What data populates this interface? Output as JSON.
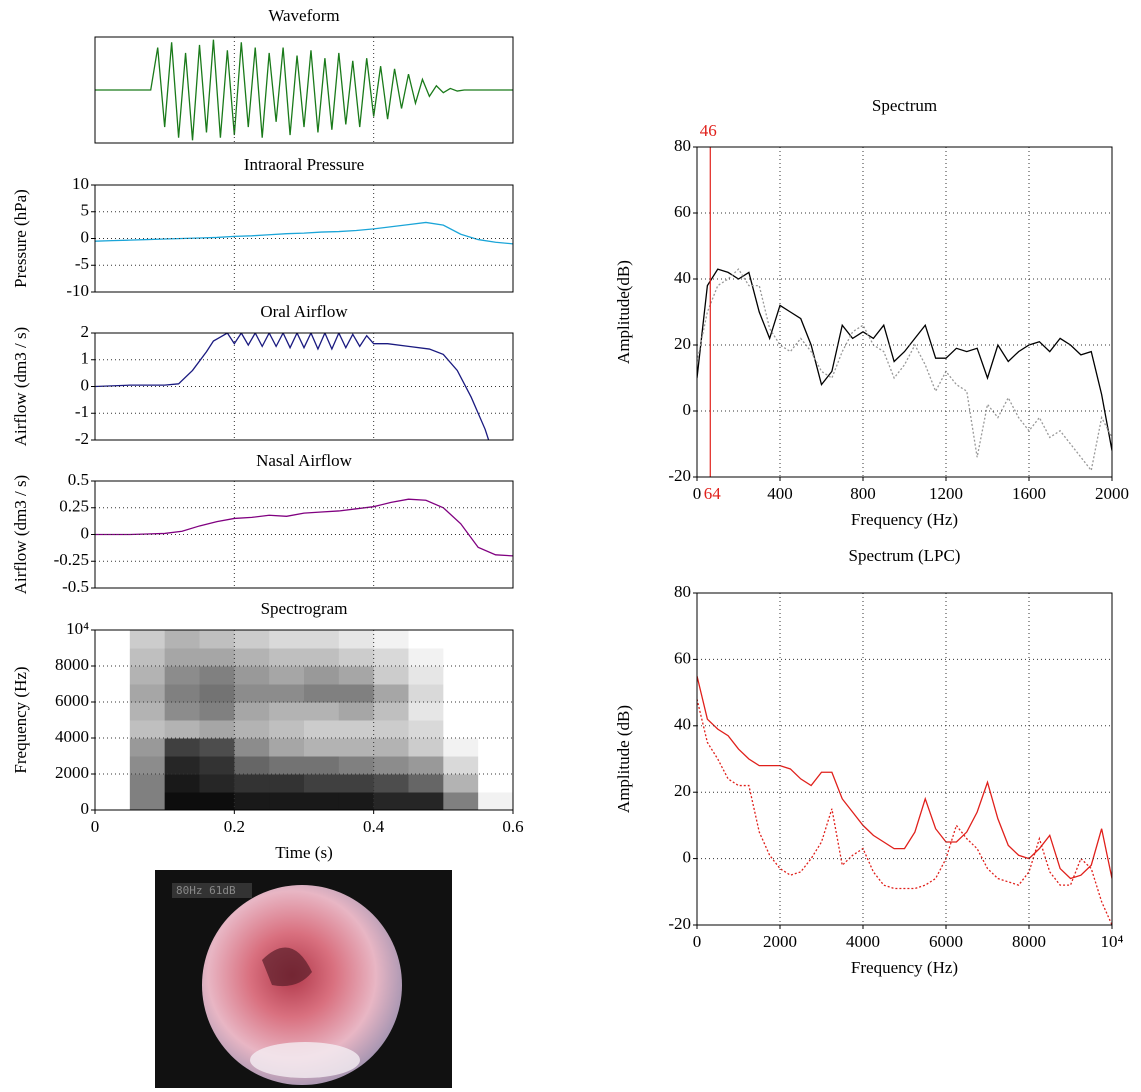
{
  "chart_data": [
    {
      "type": "line",
      "title": "Waveform",
      "xlim": [
        0,
        0.6
      ],
      "ylim": [
        -1,
        1
      ],
      "xticks": [
        0,
        0.2,
        0.4,
        0.6
      ],
      "xtick_labels": false,
      "grid": true,
      "x": [
        0,
        0.08,
        0.09,
        0.1,
        0.11,
        0.12,
        0.13,
        0.14,
        0.15,
        0.16,
        0.17,
        0.18,
        0.19,
        0.2,
        0.21,
        0.22,
        0.23,
        0.24,
        0.25,
        0.26,
        0.27,
        0.28,
        0.29,
        0.3,
        0.31,
        0.32,
        0.33,
        0.34,
        0.35,
        0.36,
        0.37,
        0.38,
        0.39,
        0.4,
        0.41,
        0.42,
        0.43,
        0.44,
        0.45,
        0.46,
        0.47,
        0.48,
        0.49,
        0.5,
        0.51,
        0.52,
        0.53,
        0.6
      ],
      "series": [
        {
          "color": "#1a7a1a",
          "values": [
            0,
            0,
            0.8,
            -0.7,
            0.9,
            -0.9,
            0.7,
            -0.95,
            0.85,
            -0.8,
            0.95,
            -0.9,
            0.75,
            -0.85,
            0.9,
            -0.7,
            0.8,
            -0.9,
            0.7,
            -0.6,
            0.8,
            -0.85,
            0.65,
            -0.7,
            0.75,
            -0.8,
            0.6,
            -0.75,
            0.7,
            -0.65,
            0.55,
            -0.7,
            0.6,
            -0.5,
            0.45,
            -0.55,
            0.4,
            -0.35,
            0.3,
            -0.25,
            0.2,
            -0.12,
            0.08,
            -0.05,
            0.03,
            -0.02,
            0,
            0
          ]
        }
      ]
    },
    {
      "type": "line",
      "title": "Intraoral Pressure",
      "ylabel": "Pressure (hPa)",
      "xlim": [
        0,
        0.6
      ],
      "ylim": [
        -10,
        10
      ],
      "xticks": [
        0,
        0.2,
        0.4,
        0.6
      ],
      "xtick_labels": false,
      "yticks": [
        -10,
        -5,
        0,
        5,
        10
      ],
      "grid": true,
      "x": [
        0,
        0.025,
        0.05,
        0.075,
        0.1,
        0.125,
        0.15,
        0.175,
        0.2,
        0.225,
        0.25,
        0.275,
        0.3,
        0.325,
        0.35,
        0.375,
        0.4,
        0.425,
        0.45,
        0.475,
        0.5,
        0.525,
        0.55,
        0.575,
        0.6
      ],
      "series": [
        {
          "color": "#1ba5d8",
          "values": [
            -0.5,
            -0.4,
            -0.3,
            -0.2,
            -0.1,
            0,
            0.1,
            0.2,
            0.4,
            0.5,
            0.7,
            0.9,
            1.0,
            1.2,
            1.3,
            1.5,
            1.8,
            2.2,
            2.6,
            3.0,
            2.5,
            0.8,
            -0.2,
            -0.7,
            -1.0
          ]
        }
      ]
    },
    {
      "type": "line",
      "title": "Oral Airflow",
      "ylabel": "Airflow (dm3 / s)",
      "xlim": [
        0,
        0.6
      ],
      "ylim": [
        -2,
        2
      ],
      "xticks": [
        0,
        0.2,
        0.4,
        0.6
      ],
      "xtick_labels": false,
      "yticks": [
        -2,
        -1,
        0,
        1,
        2
      ],
      "grid": true,
      "x": [
        0,
        0.05,
        0.1,
        0.12,
        0.14,
        0.16,
        0.17,
        0.18,
        0.19,
        0.2,
        0.21,
        0.22,
        0.23,
        0.24,
        0.25,
        0.26,
        0.27,
        0.28,
        0.29,
        0.3,
        0.31,
        0.32,
        0.33,
        0.34,
        0.35,
        0.36,
        0.37,
        0.38,
        0.39,
        0.4,
        0.42,
        0.45,
        0.48,
        0.5,
        0.52,
        0.54,
        0.56,
        0.565
      ],
      "series": [
        {
          "color": "#1a1a80",
          "values": [
            0,
            0.05,
            0.05,
            0.1,
            0.6,
            1.3,
            1.7,
            1.85,
            2.0,
            1.6,
            2.0,
            1.55,
            2.0,
            1.5,
            2.0,
            1.5,
            2.0,
            1.45,
            2.0,
            1.45,
            2.0,
            1.4,
            2.0,
            1.4,
            2.0,
            1.45,
            1.95,
            1.5,
            1.9,
            1.6,
            1.6,
            1.5,
            1.4,
            1.2,
            0.6,
            -0.4,
            -1.6,
            -2
          ]
        }
      ]
    },
    {
      "type": "line",
      "title": "Nasal Airflow",
      "ylabel": "Airflow (dm3 / s)",
      "xlim": [
        0,
        0.6
      ],
      "ylim": [
        -0.5,
        0.5
      ],
      "xticks": [
        0,
        0.2,
        0.4,
        0.6
      ],
      "xtick_labels": false,
      "yticks": [
        -0.5,
        -0.25,
        0,
        0.25,
        0.5
      ],
      "grid": true,
      "x": [
        0,
        0.025,
        0.05,
        0.075,
        0.1,
        0.125,
        0.15,
        0.175,
        0.2,
        0.225,
        0.25,
        0.275,
        0.3,
        0.325,
        0.35,
        0.375,
        0.4,
        0.425,
        0.45,
        0.475,
        0.5,
        0.525,
        0.55,
        0.575,
        0.6
      ],
      "series": [
        {
          "color": "#800080",
          "values": [
            0,
            0,
            0,
            0.005,
            0.01,
            0.03,
            0.08,
            0.12,
            0.15,
            0.16,
            0.18,
            0.17,
            0.2,
            0.21,
            0.22,
            0.24,
            0.26,
            0.3,
            0.33,
            0.32,
            0.25,
            0.1,
            -0.12,
            -0.19,
            -0.2
          ]
        }
      ]
    },
    {
      "type": "heatmap",
      "title": "Spectrogram",
      "xlabel": "Time (s)",
      "ylabel": "Frequency (Hz)",
      "xlim": [
        0,
        0.6
      ],
      "ylim": [
        0,
        10000
      ],
      "xticks": [
        0,
        0.2,
        0.4,
        0.6
      ],
      "yticks": [
        0,
        2000,
        4000,
        6000,
        8000,
        {
          "value": 10000,
          "label": "10⁴"
        }
      ],
      "grid": true,
      "time_bins": [
        0,
        0.05,
        0.1,
        0.15,
        0.2,
        0.25,
        0.3,
        0.35,
        0.4,
        0.45,
        0.5,
        0.55,
        0.6
      ],
      "freq_bins": [
        0,
        1000,
        2000,
        3000,
        4000,
        5000,
        6000,
        7000,
        8000,
        9000,
        10000
      ],
      "intensity": [
        [
          0,
          0.5,
          0.95,
          0.95,
          0.9,
          0.9,
          0.9,
          0.9,
          0.85,
          0.85,
          0.5,
          0.05
        ],
        [
          0,
          0.5,
          0.9,
          0.85,
          0.8,
          0.8,
          0.75,
          0.75,
          0.7,
          0.6,
          0.3,
          0
        ],
        [
          0,
          0.45,
          0.85,
          0.8,
          0.6,
          0.55,
          0.55,
          0.5,
          0.45,
          0.4,
          0.15,
          0
        ],
        [
          0,
          0.4,
          0.75,
          0.7,
          0.45,
          0.35,
          0.3,
          0.3,
          0.3,
          0.2,
          0.05,
          0
        ],
        [
          0,
          0.25,
          0.3,
          0.35,
          0.3,
          0.25,
          0.2,
          0.2,
          0.2,
          0.15,
          0,
          0
        ],
        [
          0,
          0.3,
          0.45,
          0.5,
          0.35,
          0.3,
          0.3,
          0.35,
          0.25,
          0.1,
          0,
          0
        ],
        [
          0,
          0.35,
          0.5,
          0.55,
          0.45,
          0.45,
          0.5,
          0.5,
          0.35,
          0.15,
          0,
          0
        ],
        [
          0,
          0.3,
          0.45,
          0.5,
          0.4,
          0.35,
          0.4,
          0.35,
          0.2,
          0.1,
          0,
          0
        ],
        [
          0,
          0.25,
          0.35,
          0.35,
          0.3,
          0.25,
          0.25,
          0.2,
          0.15,
          0.05,
          0,
          0
        ],
        [
          0,
          0.2,
          0.3,
          0.25,
          0.2,
          0.15,
          0.15,
          0.1,
          0.05,
          0,
          0,
          0
        ]
      ]
    },
    {
      "type": "line",
      "title": "Spectrum",
      "xlabel": "Frequency (Hz)",
      "ylabel": "Amplitude(dB)",
      "xlim": [
        0,
        2000
      ],
      "ylim": [
        -20,
        80
      ],
      "xticks": [
        0,
        400,
        800,
        1200,
        1600,
        2000
      ],
      "yticks": [
        -20,
        0,
        20,
        40,
        60,
        80
      ],
      "grid": true,
      "cursor": {
        "value": 64,
        "label": "64",
        "top_label": "46",
        "color": "#e0201b"
      },
      "x": [
        0,
        50,
        100,
        150,
        200,
        250,
        300,
        350,
        400,
        450,
        500,
        550,
        600,
        650,
        700,
        750,
        800,
        850,
        900,
        950,
        1000,
        1050,
        1100,
        1150,
        1200,
        1250,
        1300,
        1350,
        1400,
        1450,
        1500,
        1550,
        1600,
        1650,
        1700,
        1750,
        1800,
        1850,
        1900,
        1950,
        2000
      ],
      "series": [
        {
          "color": "#000000",
          "line_style": "solid",
          "values": [
            10,
            38,
            43,
            42,
            40,
            42,
            30,
            22,
            32,
            30,
            28,
            20,
            8,
            12,
            26,
            22,
            24,
            22,
            26,
            15,
            18,
            22,
            26,
            16,
            16,
            19,
            18,
            19,
            10,
            20,
            15,
            18,
            20,
            21,
            18,
            22,
            20,
            17,
            18,
            5,
            -12
          ]
        },
        {
          "color": "#999999",
          "line_style": "dotted",
          "values": [
            15,
            30,
            38,
            40,
            43,
            38,
            38,
            25,
            20,
            18,
            22,
            18,
            12,
            10,
            18,
            24,
            26,
            20,
            18,
            10,
            14,
            20,
            14,
            6,
            12,
            8,
            6,
            -14,
            2,
            -2,
            4,
            -2,
            -6,
            -2,
            -8,
            -6,
            -10,
            -14,
            -18,
            -2,
            -8
          ]
        }
      ]
    },
    {
      "type": "line",
      "title": "Spectrum (LPC)",
      "xlabel": "Frequency (Hz)",
      "ylabel": "Amplitude (dB)",
      "xlim": [
        0,
        10000
      ],
      "ylim": [
        -20,
        80
      ],
      "xticks": [
        0,
        2000,
        4000,
        6000,
        8000,
        {
          "value": 10000,
          "label": "10⁴"
        }
      ],
      "yticks": [
        -20,
        0,
        20,
        40,
        60,
        80
      ],
      "grid": true,
      "x": [
        0,
        250,
        500,
        750,
        1000,
        1250,
        1500,
        1750,
        2000,
        2250,
        2500,
        2750,
        3000,
        3250,
        3500,
        3750,
        4000,
        4250,
        4500,
        4750,
        5000,
        5250,
        5500,
        5750,
        6000,
        6250,
        6500,
        6750,
        7000,
        7250,
        7500,
        7750,
        8000,
        8250,
        8500,
        8750,
        9000,
        9250,
        9500,
        9750,
        10000
      ],
      "series": [
        {
          "color": "#e0201b",
          "line_style": "solid",
          "values": [
            55,
            42,
            39,
            37,
            33,
            30,
            28,
            28,
            28,
            27,
            24,
            22,
            26,
            26,
            18,
            14,
            10,
            7,
            5,
            3,
            3,
            8,
            18,
            9,
            5,
            5,
            8,
            14,
            23,
            12,
            4,
            1,
            0,
            3,
            7,
            -3,
            -6,
            -5,
            -2,
            9,
            -6
          ]
        },
        {
          "color": "#e0201b",
          "line_style": "dotted",
          "values": [
            48,
            35,
            30,
            24,
            22,
            22,
            8,
            1,
            -3,
            -5,
            -4,
            0,
            5,
            15,
            -2,
            1,
            3,
            -4,
            -8,
            -9,
            -9,
            -9,
            -8,
            -6,
            0,
            10,
            6,
            3,
            -3,
            -6,
            -7,
            -8,
            -4,
            6,
            -4,
            -8,
            -8,
            0,
            -3,
            -13,
            -20
          ]
        }
      ]
    }
  ],
  "image": {
    "overlay_text": "80Hz 61dB"
  }
}
